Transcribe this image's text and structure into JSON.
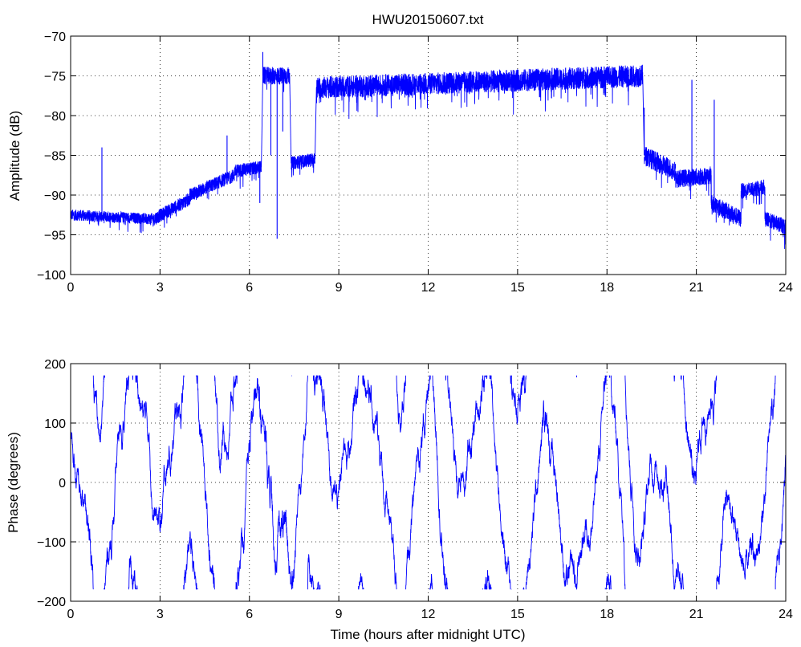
{
  "chart_data": [
    {
      "type": "line",
      "title": "HWU20150607.txt",
      "xlabel": "",
      "ylabel": "Amplitude (dB)",
      "xlim": [
        0,
        24
      ],
      "ylim": [
        -100,
        -70
      ],
      "xticks": [
        "0",
        "3",
        "6",
        "9",
        "12",
        "15",
        "18",
        "21",
        "24"
      ],
      "yticks": [
        "−70",
        "−75",
        "−80",
        "−85",
        "−90",
        "−95",
        "−100"
      ],
      "grid": true,
      "series_color": "#0000ff",
      "segments": [
        {
          "x": [
            0,
            2.8
          ],
          "y": [
            -92.5,
            -93.0
          ]
        },
        {
          "x": [
            2.8,
            4.0
          ],
          "y": [
            -93.0,
            -90.5
          ]
        },
        {
          "x": [
            4.0,
            5.5
          ],
          "y": [
            -90.0,
            -87.5
          ]
        },
        {
          "x": [
            5.5,
            6.4
          ],
          "y": [
            -87.0,
            -86.5
          ]
        },
        {
          "x": [
            6.45,
            7.35
          ],
          "y": [
            -75.0,
            -75.0
          ]
        },
        {
          "x": [
            7.4,
            8.2
          ],
          "y": [
            -86.0,
            -85.5
          ]
        },
        {
          "x": [
            8.25,
            19.2
          ],
          "y": [
            -76.5,
            -75.0
          ]
        },
        {
          "x": [
            19.25,
            20.3
          ],
          "y": [
            -85.0,
            -87.0
          ]
        },
        {
          "x": [
            20.3,
            21.5
          ],
          "y": [
            -88.0,
            -87.5
          ]
        },
        {
          "x": [
            21.5,
            22.5
          ],
          "y": [
            -91.0,
            -93.0
          ]
        },
        {
          "x": [
            22.5,
            23.3
          ],
          "y": [
            -89.5,
            -89.0
          ]
        },
        {
          "x": [
            23.3,
            24.0
          ],
          "y": [
            -93.0,
            -94.0
          ]
        }
      ],
      "noise_db": [
        0.5,
        0.6,
        0.6,
        0.6,
        0.8,
        0.6,
        1.0,
        0.9,
        0.8,
        0.8,
        0.7,
        0.7
      ],
      "spikes": [
        {
          "x": 1.05,
          "y": -84.0
        },
        {
          "x": 5.25,
          "y": -82.5
        },
        {
          "x": 6.35,
          "y": -91.0
        },
        {
          "x": 6.45,
          "y": -72.0
        },
        {
          "x": 6.72,
          "y": -85.0
        },
        {
          "x": 6.93,
          "y": -95.5
        },
        {
          "x": 7.12,
          "y": -82.0
        },
        {
          "x": 19.25,
          "y": -79.0
        },
        {
          "x": 20.85,
          "y": -75.5
        },
        {
          "x": 21.6,
          "y": -78.0
        }
      ]
    },
    {
      "type": "line",
      "title": "",
      "xlabel": "Time (hours after midnight UTC)",
      "ylabel": "Phase (degrees)",
      "xlim": [
        0,
        24
      ],
      "ylim": [
        -200,
        200
      ],
      "xticks": [
        "0",
        "3",
        "6",
        "9",
        "12",
        "15",
        "18",
        "21",
        "24"
      ],
      "yticks": [
        "200",
        "100",
        "0",
        "−100",
        "−200"
      ],
      "grid": true,
      "series_color": "#0000ff",
      "wrap_range": [
        -180,
        180
      ],
      "drift_deg_per_hour": [
        -400,
        420,
        -260,
        300,
        -500,
        360,
        -420,
        900,
        -300,
        280,
        -380,
        340,
        -460,
        300,
        -350,
        420,
        -300,
        380,
        -440,
        300,
        -330,
        400,
        -280,
        360,
        -420
      ],
      "noise_deg": 12
    }
  ]
}
